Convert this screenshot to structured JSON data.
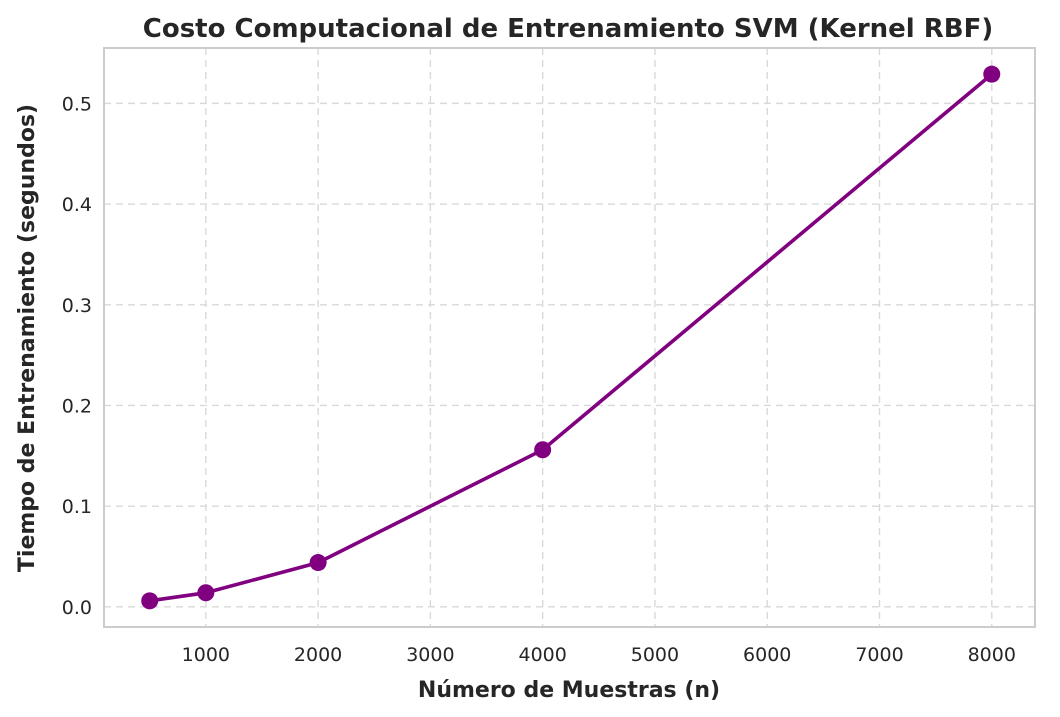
{
  "chart_data": {
    "type": "line",
    "title": "Costo Computacional de Entrenamiento SVM (Kernel RBF)",
    "xlabel": "Número de Muestras (n)",
    "ylabel": "Tiempo de Entrenamiento (segundos)",
    "x": [
      500,
      1000,
      2000,
      4000,
      8000
    ],
    "series": [
      {
        "values": [
          0.006,
          0.014,
          0.044,
          0.156,
          0.529
        ],
        "color": "#800080",
        "marker": "circle"
      }
    ],
    "xlim": [
      93,
      8385
    ],
    "ylim": [
      -0.02,
      0.555
    ],
    "xticks": [
      1000,
      2000,
      3000,
      4000,
      5000,
      6000,
      7000,
      8000
    ],
    "xtick_labels": [
      "1000",
      "2000",
      "3000",
      "4000",
      "5000",
      "6000",
      "7000",
      "8000"
    ],
    "yticks": [
      0.0,
      0.1,
      0.2,
      0.3,
      0.4,
      0.5
    ],
    "ytick_labels": [
      "0.0",
      "0.1",
      "0.2",
      "0.3",
      "0.4",
      "0.5"
    ],
    "grid": true,
    "legend": "none"
  }
}
